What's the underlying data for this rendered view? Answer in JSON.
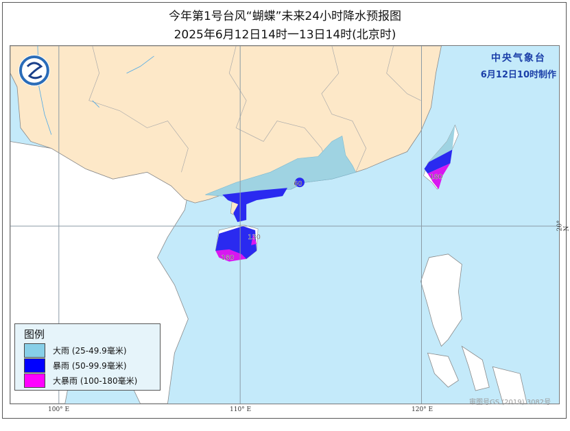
{
  "title": "今年第1号台风“蝴蝶”未来24小时降水预报图",
  "subtitle": "2025年6月12日14时一13日14时(北京时)",
  "agency": {
    "name": "中央气象台",
    "issued": "6月12日10时制作"
  },
  "legend": {
    "title": "图例",
    "items": [
      {
        "label": "大雨 (25-49.9毫米)",
        "color": "#87cfe8"
      },
      {
        "label": "暴雨 (50-99.9毫米)",
        "color": "#0000ff"
      },
      {
        "label": "大暴雨 (100-180毫米)",
        "color": "#ff00ff"
      }
    ]
  },
  "map_labels": [
    "60",
    "130",
    "180",
    "180"
  ],
  "longitude_labels": [
    "100° E",
    "110° E",
    "120° E"
  ],
  "latitude_labels": [
    "20° N"
  ],
  "copyright": "审图号GS (2019) 3082号",
  "colors": {
    "sea": "#c4eafa",
    "china_land": "#fde8c8",
    "other_land": "#ffffff",
    "heavy_rain_area": "#9fd3e2",
    "rainstorm_area": "#2a2af0",
    "severe_rainstorm_area": "#d818f0"
  }
}
